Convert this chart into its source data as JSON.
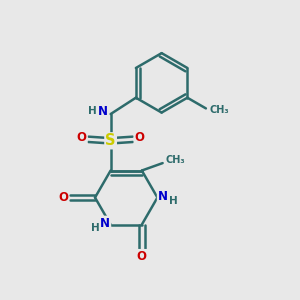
{
  "background_color": "#e8e8e8",
  "bond_color": "#2d6b6b",
  "bond_width": 1.8,
  "atom_colors": {
    "N": "#0000cc",
    "O": "#cc0000",
    "S": "#cccc00",
    "C": "#2d6b6b",
    "H": "#2d6b6b"
  },
  "font_size": 8.5,
  "fig_width": 3.0,
  "fig_height": 3.0,
  "xlim": [
    0,
    10
  ],
  "ylim": [
    0,
    10
  ]
}
